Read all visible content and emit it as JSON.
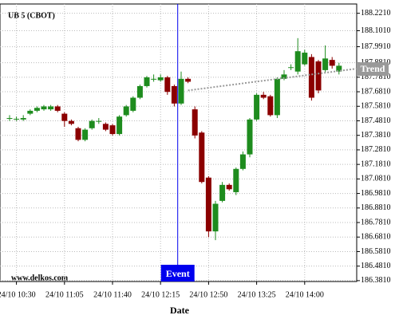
{
  "chart_data": {
    "type": "candlestick",
    "title": "UB 5 (CBOT)",
    "source": "www.delkos.com",
    "x_label": "Date",
    "categories": [
      null,
      "24/10 10:30",
      null,
      null,
      null,
      null,
      null,
      null,
      "24/10 11:05",
      null,
      null,
      null,
      null,
      null,
      null,
      "24/10 11:40",
      null,
      null,
      null,
      null,
      null,
      null,
      "24/10 12:15",
      null,
      null,
      null,
      null,
      null,
      null,
      "24/10 12:50",
      null,
      null,
      null,
      null,
      null,
      null,
      "24/10 13:25",
      null,
      null,
      null,
      null,
      null,
      null,
      "24/10 14:00",
      null,
      null,
      null,
      null,
      null
    ],
    "open": [
      187.5,
      187.495,
      187.49,
      187.53,
      187.55,
      187.56,
      187.56,
      187.58,
      187.53,
      187.48,
      187.43,
      187.35,
      187.43,
      187.48,
      187.46,
      187.45,
      187.39,
      187.52,
      187.55,
      187.64,
      187.72,
      187.77,
      187.76,
      187.78,
      187.72,
      187.6,
      187.77,
      187.56,
      187.4,
      187.09,
      186.72,
      186.93,
      187.04,
      186.99,
      187.15,
      187.25,
      187.49,
      187.66,
      187.65,
      187.52,
      187.77,
      187.85,
      187.82,
      187.87,
      187.92,
      187.89,
      187.83,
      187.9,
      187.82
    ],
    "high": [
      187.52,
      187.51,
      187.52,
      187.56,
      187.58,
      187.59,
      187.59,
      187.59,
      187.54,
      187.49,
      187.44,
      187.43,
      187.49,
      187.5,
      187.47,
      187.46,
      187.52,
      187.59,
      187.65,
      187.73,
      187.79,
      187.8,
      187.8,
      187.79,
      187.73,
      187.82,
      187.78,
      187.58,
      187.41,
      187.1,
      186.93,
      187.06,
      187.05,
      187.16,
      187.27,
      187.5,
      187.67,
      187.68,
      187.66,
      187.78,
      187.83,
      187.87,
      188.05,
      187.97,
      187.94,
      187.9,
      188.0,
      187.92,
      187.88
    ],
    "low": [
      187.48,
      187.48,
      187.48,
      187.52,
      187.54,
      187.55,
      187.55,
      187.54,
      187.44,
      187.45,
      187.34,
      187.34,
      187.42,
      187.46,
      187.41,
      187.38,
      187.38,
      187.51,
      187.54,
      187.63,
      187.71,
      187.75,
      187.75,
      187.66,
      187.58,
      187.59,
      187.74,
      187.36,
      187.05,
      186.68,
      186.66,
      186.92,
      187.0,
      186.97,
      187.14,
      187.23,
      187.48,
      187.63,
      187.51,
      187.5,
      187.76,
      187.83,
      187.8,
      187.86,
      187.62,
      187.67,
      187.81,
      187.84,
      187.8
    ],
    "close": [
      187.5,
      187.495,
      187.5,
      187.55,
      187.57,
      187.58,
      187.58,
      187.55,
      187.48,
      187.46,
      187.35,
      187.42,
      187.48,
      187.48,
      187.42,
      187.39,
      187.51,
      187.58,
      187.64,
      187.72,
      187.78,
      187.77,
      187.78,
      187.68,
      187.6,
      187.77,
      187.75,
      187.38,
      187.06,
      186.72,
      186.91,
      187.04,
      187.01,
      187.15,
      187.25,
      187.49,
      187.66,
      187.64,
      187.52,
      187.77,
      187.8,
      187.85,
      187.96,
      187.95,
      187.64,
      187.69,
      187.91,
      187.86,
      187.86
    ],
    "up_color": "#1e8c1e",
    "down_color": "#8b0000",
    "ylim": [
      186.375,
      188.285
    ],
    "yticks": [
      {
        "value": 188.221,
        "label": "188.2210"
      },
      {
        "value": 188.101,
        "label": "188.1010"
      },
      {
        "value": 187.991,
        "label": "187.9910"
      },
      {
        "value": 187.881,
        "label": "187.8810"
      },
      {
        "value": 187.781,
        "label": "187.7810"
      },
      {
        "value": 187.681,
        "label": "187.6810"
      },
      {
        "value": 187.581,
        "label": "187.5810"
      },
      {
        "value": 187.481,
        "label": "187.4810"
      },
      {
        "value": 187.381,
        "label": "187.3810"
      },
      {
        "value": 187.281,
        "label": "187.2810"
      },
      {
        "value": 187.181,
        "label": "187.1810"
      },
      {
        "value": 187.081,
        "label": "187.0810"
      },
      {
        "value": 186.981,
        "label": "186.9810"
      },
      {
        "value": 186.881,
        "label": "186.8810"
      },
      {
        "value": 186.781,
        "label": "186.7810"
      },
      {
        "value": 186.681,
        "label": "186.6810"
      },
      {
        "value": 186.581,
        "label": "186.5810"
      },
      {
        "value": 186.481,
        "label": "186.4810"
      },
      {
        "value": 186.381,
        "label": "186.3810"
      }
    ],
    "grid": true,
    "event": {
      "label": "Event",
      "color": "#0000ee"
    },
    "trend": {
      "label": "Trend",
      "values": [
        187.69,
        187.84
      ],
      "color": "#999999"
    }
  }
}
